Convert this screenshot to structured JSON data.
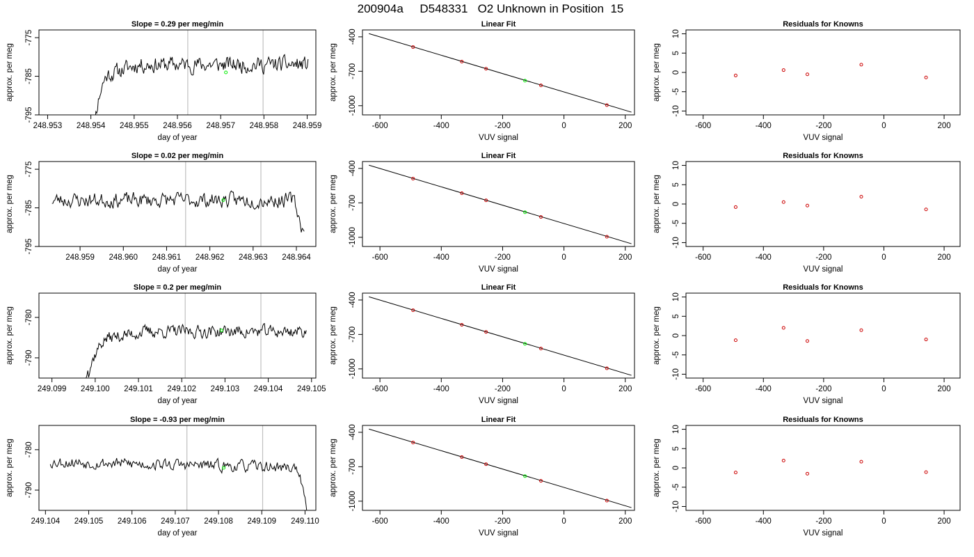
{
  "figure": {
    "title": "200904a     D548331   O2 Unknown in Position  15",
    "colors": {
      "trace": "#000000",
      "vline": "#bfbfbf",
      "known": "#cc0000",
      "unknown": "#00ee00",
      "frame": "#000000"
    }
  },
  "chart_data": [
    {
      "type": "line",
      "panel": "row1-time",
      "title": "Slope =  0.29  per meg/min",
      "xlabel": "day of year",
      "ylabel": "approx. per meg",
      "xlim": [
        248.9528,
        248.9592
      ],
      "ylim": [
        -795,
        -773
      ],
      "xticks": [
        248.953,
        248.954,
        248.955,
        248.956,
        248.957,
        248.958,
        248.959
      ],
      "xtick_labels": [
        "248.953",
        "248.954",
        "248.955",
        "248.956",
        "248.957",
        "248.958",
        "248.959"
      ],
      "yticks": [
        -775,
        -785,
        -795
      ],
      "ytick_labels": [
        "-775",
        "-785",
        "-795"
      ],
      "vlines": [
        248.95624,
        248.95798
      ],
      "series": [
        {
          "x_start": 248.95398,
          "x_end": 248.95902,
          "warmup": {
            "start": -805,
            "end": -784.5,
            "duration": 0.00045
          },
          "level": -782,
          "noise": 3.2,
          "drift": 0,
          "end_drop": 0,
          "seed": 11
        }
      ],
      "highlight": {
        "x": 248.95712,
        "y": -784
      }
    },
    {
      "type": "scatter",
      "panel": "row1-fit",
      "title": "Linear Fit",
      "xlabel": "VUV signal",
      "ylabel": "approx. per meg",
      "xlim": [
        -657,
        230
      ],
      "ylim": [
        -1080,
        -340
      ],
      "xticks": [
        -600,
        -400,
        -200,
        0,
        200
      ],
      "xtick_labels": [
        "-600",
        "-400",
        "-200",
        "0",
        "200"
      ],
      "yticks": [
        -400,
        -700,
        -1000
      ],
      "ytick_labels": [
        "-400",
        "-700",
        "-1000"
      ],
      "fit_line": {
        "x": [
          -636,
          220
        ],
        "y": [
          -372,
          -1056
        ]
      },
      "knowns": {
        "x": [
          -492,
          -333,
          -254,
          -75,
          140
        ],
        "y": [
          -489,
          -616,
          -678,
          -823,
          -995
        ]
      },
      "unknown": {
        "x": -127,
        "y": -782
      }
    },
    {
      "type": "scatter",
      "panel": "row1-resid",
      "title": "Residuals for Knowns",
      "xlabel": "VUV signal",
      "ylabel": "approx. per meg",
      "xlim": [
        -657,
        253
      ],
      "ylim": [
        -11,
        11
      ],
      "xticks": [
        -600,
        -400,
        -200,
        0,
        200
      ],
      "xtick_labels": [
        "-600",
        "-400",
        "-200",
        "0",
        "200"
      ],
      "yticks": [
        10,
        5,
        0,
        -5,
        -10
      ],
      "ytick_labels": [
        "10",
        "5",
        "0",
        "-5",
        "-10"
      ],
      "points": {
        "x": [
          -492,
          -333,
          -254,
          -75,
          140
        ],
        "y": [
          -0.8,
          0.6,
          -0.5,
          2.0,
          -1.3
        ]
      }
    },
    {
      "type": "line",
      "panel": "row2-time",
      "title": "Slope =  0.02  per meg/min",
      "xlabel": "day of year",
      "ylabel": "approx. per meg",
      "xlim": [
        248.95805,
        248.96445
      ],
      "ylim": [
        -795,
        -773
      ],
      "xticks": [
        248.959,
        248.96,
        248.961,
        248.962,
        248.963,
        248.964
      ],
      "xtick_labels": [
        "248.959",
        "248.960",
        "248.961",
        "248.962",
        "248.963",
        "248.964"
      ],
      "vlines": [
        248.96144,
        248.96318
      ],
      "yticks": [
        -775,
        -785,
        -795
      ],
      "ytick_labels": [
        "-775",
        "-785",
        "-795"
      ],
      "series": [
        {
          "x_start": 248.95835,
          "x_end": 248.96418,
          "warmup": null,
          "level": -783,
          "noise": 3.0,
          "drift": 0,
          "end_drop": -9,
          "seed": 23
        }
      ],
      "highlight": {
        "x": 248.96231,
        "y": -783
      }
    },
    {
      "type": "scatter",
      "panel": "row2-fit",
      "title": "Linear Fit",
      "xlabel": "VUV signal",
      "ylabel": "approx. per meg",
      "xlim": [
        -657,
        230
      ],
      "ylim": [
        -1080,
        -340
      ],
      "xticks": [
        -600,
        -400,
        -200,
        0,
        200
      ],
      "xtick_labels": [
        "-600",
        "-400",
        "-200",
        "0",
        "200"
      ],
      "yticks": [
        -400,
        -700,
        -1000
      ],
      "ytick_labels": [
        "-400",
        "-700",
        "-1000"
      ],
      "fit_line": {
        "x": [
          -636,
          220
        ],
        "y": [
          -372,
          -1056
        ]
      },
      "knowns": {
        "x": [
          -492,
          -333,
          -254,
          -75,
          140
        ],
        "y": [
          -489,
          -616,
          -678,
          -823,
          -995
        ]
      },
      "unknown": {
        "x": -127,
        "y": -782
      }
    },
    {
      "type": "scatter",
      "panel": "row2-resid",
      "title": "Residuals for Knowns",
      "xlabel": "VUV signal",
      "ylabel": "approx. per meg",
      "xlim": [
        -657,
        253
      ],
      "ylim": [
        -11,
        11
      ],
      "xticks": [
        -600,
        -400,
        -200,
        0,
        200
      ],
      "xtick_labels": [
        "-600",
        "-400",
        "-200",
        "0",
        "200"
      ],
      "yticks": [
        10,
        5,
        0,
        -5,
        -10
      ],
      "ytick_labels": [
        "10",
        "5",
        "0",
        "-5",
        "-10"
      ],
      "points": {
        "x": [
          -492,
          -333,
          -254,
          -75,
          140
        ],
        "y": [
          -0.8,
          0.5,
          -0.4,
          1.9,
          -1.4
        ]
      }
    },
    {
      "type": "line",
      "panel": "row3-time",
      "title": "Slope =  0.2  per meg/min",
      "xlabel": "day of year",
      "ylabel": "approx. per meg",
      "xlim": [
        249.0987,
        249.1051
      ],
      "ylim": [
        -795,
        -774
      ],
      "xticks": [
        249.099,
        249.1,
        249.101,
        249.102,
        249.103,
        249.104,
        249.105
      ],
      "xtick_labels": [
        "249.099",
        "249.100",
        "249.101",
        "249.102",
        "249.103",
        "249.104",
        "249.105"
      ],
      "yticks": [
        -780,
        -790
      ],
      "ytick_labels": [
        "-780",
        "-790"
      ],
      "vlines": [
        249.10208,
        249.10383
      ],
      "series": [
        {
          "x_start": 249.09975,
          "x_end": 249.10488,
          "warmup": {
            "start": -797,
            "end": -785,
            "duration": 0.0006
          },
          "level": -783.5,
          "noise": 2.4,
          "drift": 0.0,
          "end_drop": 0,
          "seed": 37
        }
      ],
      "highlight": {
        "x": 249.10292,
        "y": -783.2
      }
    },
    {
      "type": "scatter",
      "panel": "row3-fit",
      "title": "Linear Fit",
      "xlabel": "VUV signal",
      "ylabel": "approx. per meg",
      "xlim": [
        -657,
        230
      ],
      "ylim": [
        -1080,
        -340
      ],
      "xticks": [
        -600,
        -400,
        -200,
        0,
        200
      ],
      "xtick_labels": [
        "-600",
        "-400",
        "-200",
        "0",
        "200"
      ],
      "yticks": [
        -400,
        -700,
        -1000
      ],
      "ytick_labels": [
        "-400",
        "-700",
        "-1000"
      ],
      "fit_line": {
        "x": [
          -636,
          220
        ],
        "y": [
          -372,
          -1056
        ]
      },
      "knowns": {
        "x": [
          -492,
          -333,
          -254,
          -75,
          140
        ],
        "y": [
          -489,
          -616,
          -678,
          -823,
          -995
        ]
      },
      "unknown": {
        "x": -127,
        "y": -782
      }
    },
    {
      "type": "scatter",
      "panel": "row3-resid",
      "title": "Residuals for Knowns",
      "xlabel": "VUV signal",
      "ylabel": "approx. per meg",
      "xlim": [
        -657,
        253
      ],
      "ylim": [
        -11,
        11
      ],
      "xticks": [
        -600,
        -400,
        -200,
        0,
        200
      ],
      "xtick_labels": [
        "-600",
        "-400",
        "-200",
        "0",
        "200"
      ],
      "yticks": [
        10,
        5,
        0,
        -5,
        -10
      ],
      "ytick_labels": [
        "10",
        "5",
        "0",
        "-5",
        "-10"
      ],
      "points": {
        "x": [
          -492,
          -333,
          -254,
          -75,
          140
        ],
        "y": [
          -1.2,
          2.0,
          -1.4,
          1.4,
          -1.0
        ]
      }
    },
    {
      "type": "line",
      "panel": "row4-time",
      "title": "Slope =  -0.93  per meg/min",
      "xlabel": "day of year",
      "ylabel": "approx. per meg",
      "xlim": [
        249.10385,
        249.11025
      ],
      "ylim": [
        -795,
        -774
      ],
      "xticks": [
        249.104,
        249.105,
        249.106,
        249.107,
        249.108,
        249.109,
        249.11
      ],
      "xtick_labels": [
        "249.104",
        "249.105",
        "249.106",
        "249.107",
        "249.108",
        "249.109",
        "249.110"
      ],
      "yticks": [
        -780,
        -790
      ],
      "ytick_labels": [
        "-780",
        "-790"
      ],
      "vlines": [
        249.10727,
        249.10902
      ],
      "series": [
        {
          "x_start": 249.10411,
          "x_end": 249.11007,
          "warmup": null,
          "level": -783,
          "noise": 2.2,
          "drift": -1.5,
          "end_drop": -12,
          "seed": 53
        }
      ],
      "highlight": {
        "x": 249.10812,
        "y": -784.5
      }
    },
    {
      "type": "scatter",
      "panel": "row4-fit",
      "title": "Linear Fit",
      "xlabel": "VUV signal",
      "ylabel": "approx. per meg",
      "xlim": [
        -657,
        230
      ],
      "ylim": [
        -1080,
        -340
      ],
      "xticks": [
        -600,
        -400,
        -200,
        0,
        200
      ],
      "xtick_labels": [
        "-600",
        "-400",
        "-200",
        "0",
        "200"
      ],
      "yticks": [
        -400,
        -700,
        -1000
      ],
      "ytick_labels": [
        "-400",
        "-700",
        "-1000"
      ],
      "fit_line": {
        "x": [
          -636,
          220
        ],
        "y": [
          -372,
          -1056
        ]
      },
      "knowns": {
        "x": [
          -492,
          -333,
          -254,
          -75,
          140
        ],
        "y": [
          -489,
          -616,
          -678,
          -823,
          -995
        ]
      },
      "unknown": {
        "x": -127,
        "y": -782
      }
    },
    {
      "type": "scatter",
      "panel": "row4-resid",
      "title": "Residuals for Knowns",
      "xlabel": "VUV signal",
      "ylabel": "approx. per meg",
      "xlim": [
        -657,
        253
      ],
      "ylim": [
        -11,
        11
      ],
      "xticks": [
        -600,
        -400,
        -200,
        0,
        200
      ],
      "xtick_labels": [
        "-600",
        "-400",
        "-200",
        "0",
        "200"
      ],
      "yticks": [
        10,
        5,
        0,
        -5,
        -10
      ],
      "ytick_labels": [
        "10",
        "5",
        "0",
        "-5",
        "-10"
      ],
      "points": {
        "x": [
          -492,
          -333,
          -254,
          -75,
          140
        ],
        "y": [
          -1.2,
          1.9,
          -1.5,
          1.6,
          -1.1
        ]
      }
    }
  ]
}
